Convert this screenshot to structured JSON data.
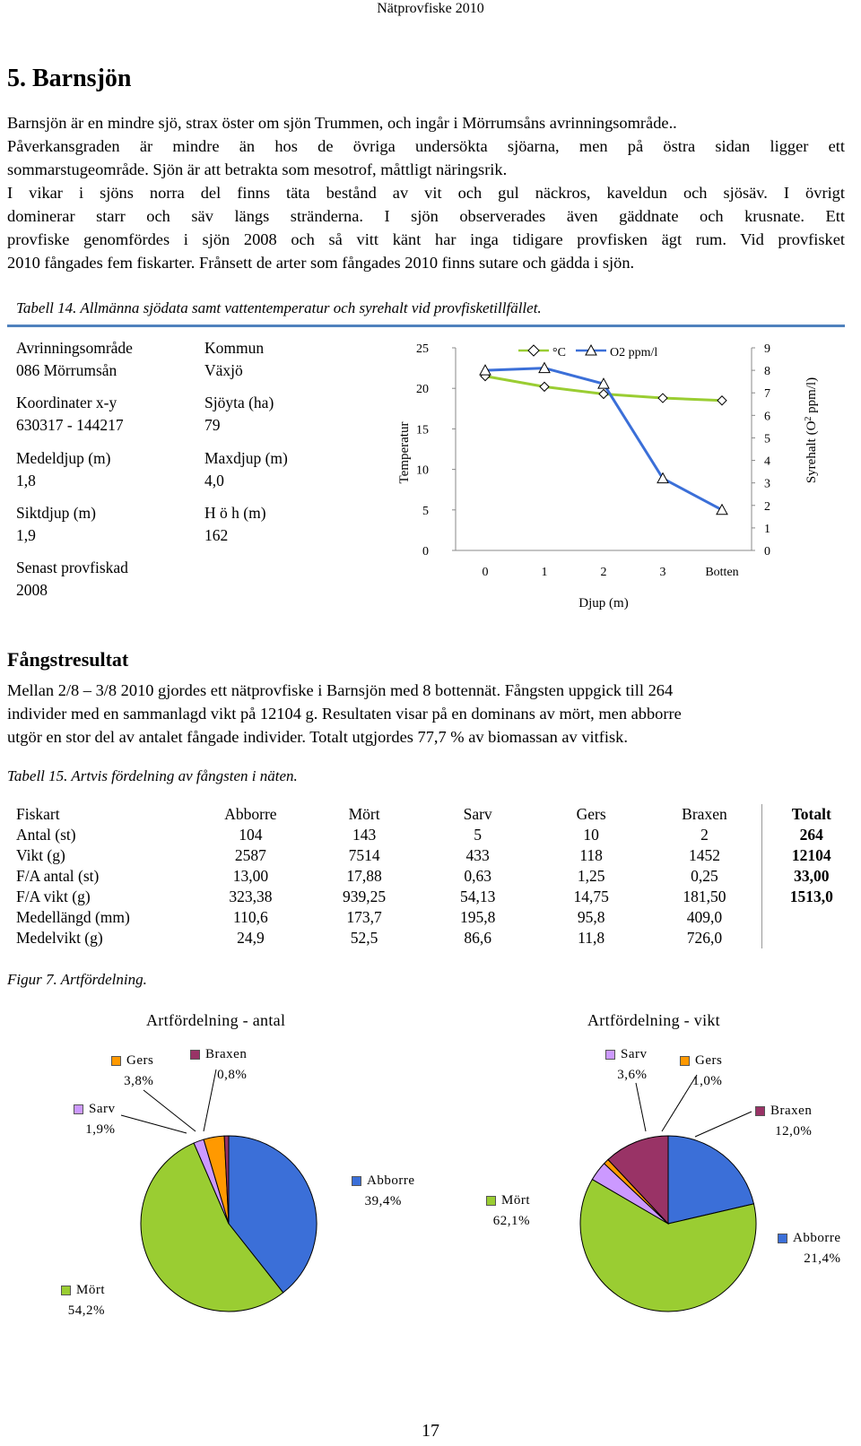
{
  "header": {
    "title": "Nätprovfiske 2010"
  },
  "section": {
    "title": "5. Barnsjön"
  },
  "intro": {
    "lines": [
      "Barnsjön är en mindre sjö, strax öster om sjön Trummen, och ingår i Mörrumsåns avrinningsområde..",
      "Påverkansgraden är mindre än hos de övriga undersökta sjöarna, men på östra sidan ligger ett",
      "sommarstugeområde. Sjön är att betrakta som mesotrof, måttligt näringsrik.",
      "I vikar i sjöns norra del finns täta bestånd av vit och gul näckros, kaveldun och sjösäv. I övrigt",
      "dominerar starr och säv längs stränderna. I sjön observerades även gäddnate och krusnate. Ett",
      "provfiske genomfördes i sjön 2008 och så vitt känt har inga tidigare provfisken ägt rum. Vid provfisket",
      "2010 fångades fem fiskarter. Frånsett de arter som fångades 2010 finns sutare och gädda i sjön."
    ]
  },
  "table14": {
    "caption": "Tabell 14. Allmänna sjödata samt vattentemperatur och syrehalt vid provfisketillfället.",
    "fields": [
      {
        "label": "Avrinningsområde",
        "value": "086 Mörrumsån"
      },
      {
        "label": "Kommun",
        "value": "Växjö"
      },
      {
        "label": "Koordinater x-y",
        "value": "630317 - 144217"
      },
      {
        "label": "Sjöyta (ha)",
        "value": "79"
      },
      {
        "label": "Medeldjup (m)",
        "value": "1,8"
      },
      {
        "label": "Maxdjup (m)",
        "value": "4,0"
      },
      {
        "label": "Siktdjup (m)",
        "value": "1,9"
      },
      {
        "label": "H ö h (m)",
        "value": "162"
      },
      {
        "label": "Senast provfiskad",
        "value": "2008"
      }
    ]
  },
  "chart_data": [
    {
      "type": "line",
      "categories": [
        "0",
        "1",
        "2",
        "3",
        "Botten"
      ],
      "series": [
        {
          "name": "°C",
          "values": [
            21.5,
            20.2,
            19.3,
            18.8,
            18.5
          ],
          "axis": "left",
          "color": "#9acd32",
          "marker": "diamond"
        },
        {
          "name": "O2 ppm/l",
          "values": [
            8.0,
            8.1,
            7.4,
            3.2,
            1.8
          ],
          "axis": "right",
          "color": "#3b6fd8",
          "marker": "triangle"
        }
      ],
      "xlabel": "Djup (m)",
      "ylabel": "Temperatur",
      "y2label": "Syrehalt (O",
      "y2label_sup": "2",
      "y2label_end": " ppm/l)",
      "ylim": [
        0,
        25
      ],
      "yticks": [
        "0",
        "5",
        "10",
        "15",
        "20",
        "25"
      ],
      "y2lim": [
        0,
        9
      ],
      "y2ticks": [
        "0",
        "1",
        "2",
        "3",
        "4",
        "5",
        "6",
        "7",
        "8",
        "9"
      ],
      "legend": "top"
    },
    {
      "type": "pie",
      "title": "Artfördelning - antal",
      "slices": [
        {
          "name": "Abborre",
          "pct": "39,4%",
          "value": 39.4,
          "color": "#3b6fd8"
        },
        {
          "name": "Mört",
          "pct": "54,2%",
          "value": 54.2,
          "color": "#9acd32"
        },
        {
          "name": "Sarv",
          "pct": "1,9%",
          "value": 1.9,
          "color": "#cc99ff"
        },
        {
          "name": "Gers",
          "pct": "3,8%",
          "value": 3.8,
          "color": "#ff9900"
        },
        {
          "name": "Braxen",
          "pct": "0,8%",
          "value": 0.8,
          "color": "#993366"
        }
      ]
    },
    {
      "type": "pie",
      "title": "Artfördelning - vikt",
      "slices": [
        {
          "name": "Abborre",
          "pct": "21,4%",
          "value": 21.4,
          "color": "#3b6fd8"
        },
        {
          "name": "Mört",
          "pct": "62,1%",
          "value": 62.1,
          "color": "#9acd32"
        },
        {
          "name": "Sarv",
          "pct": "3,6%",
          "value": 3.6,
          "color": "#cc99ff"
        },
        {
          "name": "Gers",
          "pct": "1,0%",
          "value": 1.0,
          "color": "#ff9900"
        },
        {
          "name": "Braxen",
          "pct": "12,0%",
          "value": 12.0,
          "color": "#993366"
        }
      ]
    }
  ],
  "catch": {
    "heading": "Fångstresultat",
    "lines": [
      "Mellan 2/8 – 3/8 2010 gjordes ett nätprovfiske i Barnsjön med 8 bottennät. Fångsten uppgick till 264",
      "individer med en sammanlagd vikt på 12104 g. Resultaten visar på en dominans av mört, men abborre",
      "utgör en stor del av antalet fångade individer. Totalt utgjordes 77,7 % av biomassan av vitfisk."
    ]
  },
  "table15": {
    "caption": "Tabell 15. Artvis fördelning av fångsten i näten.",
    "headers": [
      "Fiskart",
      "Abborre",
      "Mört",
      "Sarv",
      "Gers",
      "Braxen",
      "Totalt"
    ],
    "rows": [
      [
        "Antal (st)",
        "104",
        "143",
        "5",
        "10",
        "2",
        "264"
      ],
      [
        "Vikt (g)",
        "2587",
        "7514",
        "433",
        "118",
        "1452",
        "12104"
      ],
      [
        "F/A antal (st)",
        "13,00",
        "17,88",
        "0,63",
        "1,25",
        "0,25",
        "33,00"
      ],
      [
        "F/A vikt (g)",
        "323,38",
        "939,25",
        "54,13",
        "14,75",
        "181,50",
        "1513,0"
      ],
      [
        "Medellängd (mm)",
        "110,6",
        "173,7",
        "195,8",
        "95,8",
        "409,0",
        ""
      ],
      [
        "Medelvikt (g)",
        "24,9",
        "52,5",
        "86,6",
        "11,8",
        "726,0",
        ""
      ]
    ]
  },
  "figure7": {
    "caption": "Figur 7. Artfördelning."
  },
  "page": {
    "number": "17"
  }
}
